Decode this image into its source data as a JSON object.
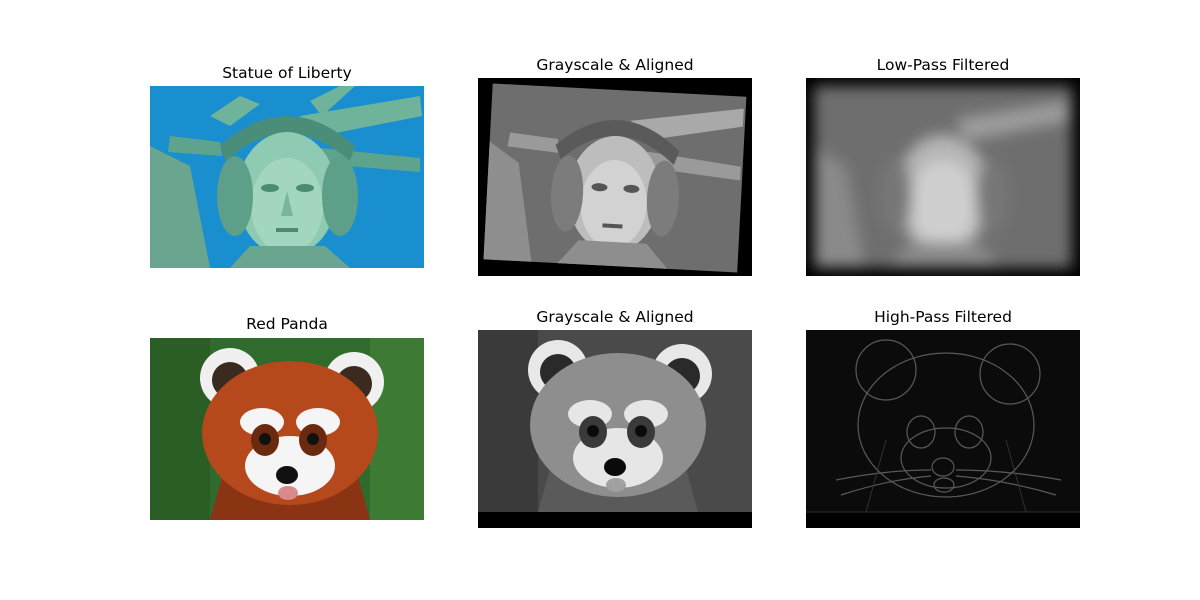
{
  "panels": [
    {
      "title": "Statue of Liberty"
    },
    {
      "title": "Grayscale & Aligned"
    },
    {
      "title": "Low-Pass Filtered"
    },
    {
      "title": "Red Panda"
    },
    {
      "title": "Grayscale & Aligned"
    },
    {
      "title": "High-Pass Filtered"
    }
  ],
  "colors": {
    "sky": "#1a8fd0",
    "statue": "#7fbfa6",
    "panda_fur": "#b5491b",
    "foliage": "#2f6b2a"
  }
}
